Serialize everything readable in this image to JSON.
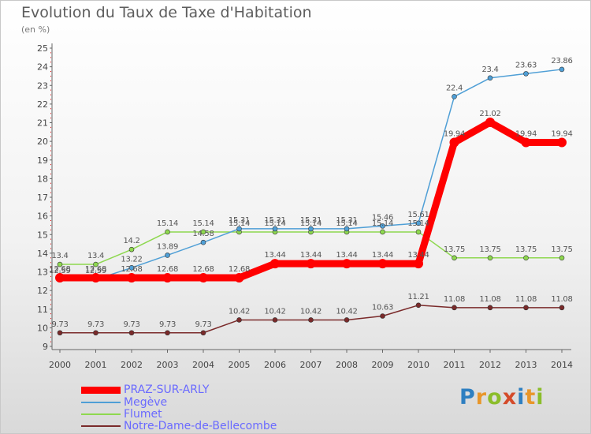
{
  "chart_data": {
    "type": "line",
    "title": "Evolution du Taux de Taxe d'Habitation",
    "subtitle": "(en %)",
    "x": [
      "2000",
      "2001",
      "2002",
      "2003",
      "2004",
      "2005",
      "2006",
      "2007",
      "2008",
      "2009",
      "2010",
      "2011",
      "2012",
      "2013",
      "2014"
    ],
    "ylim": [
      9,
      25
    ],
    "yticks": [
      9,
      10,
      11,
      12,
      13,
      14,
      15,
      16,
      17,
      18,
      19,
      20,
      21,
      22,
      23,
      24,
      25
    ],
    "grid": false,
    "legend_position": "bottom-left",
    "series": [
      {
        "name": "PRAZ-SUR-ARLY",
        "color": "#ff0000",
        "values": [
          12.68,
          12.68,
          12.68,
          12.68,
          12.68,
          12.68,
          13.44,
          13.44,
          13.44,
          13.44,
          13.44,
          19.94,
          21.02,
          19.94,
          19.94
        ],
        "labels": [
          "12.68",
          "12.68",
          "12.68",
          "12.68",
          "12.68",
          "12.68",
          "13.44",
          "13.44",
          "13.44",
          "13.44",
          "13.44",
          "19.94",
          "21.02",
          "19.94",
          "19.94"
        ]
      },
      {
        "name": "Megève",
        "color": "#4f9fd6",
        "values": [
          12.59,
          12.59,
          13.22,
          13.89,
          14.58,
          15.31,
          15.31,
          15.31,
          15.31,
          15.46,
          15.61,
          22.4,
          23.4,
          23.63,
          23.86
        ],
        "labels": [
          "12.59",
          "12.59",
          "13.22",
          "13.89",
          "14.58",
          "15.31",
          "15.31",
          "15.31",
          "15.31",
          "15.46",
          "15.61",
          "22.4",
          "23.4",
          "23.63",
          "23.86"
        ]
      },
      {
        "name": "Flumet",
        "color": "#8ed84f",
        "values": [
          13.4,
          13.4,
          14.2,
          15.14,
          15.14,
          15.14,
          15.14,
          15.14,
          15.14,
          15.14,
          15.14,
          13.75,
          13.75,
          13.75,
          13.75
        ],
        "labels": [
          "13.4",
          "13.4",
          "14.2",
          "15.14",
          "15.14",
          "15.14",
          "15.14",
          "15.14",
          "15.14",
          "15.14",
          "15.14",
          "13.75",
          "13.75",
          "13.75",
          "13.75"
        ]
      },
      {
        "name": "Notre-Dame-de-Bellecombe",
        "color": "#7a2a2a",
        "values": [
          9.73,
          9.73,
          9.73,
          9.73,
          9.73,
          10.42,
          10.42,
          10.42,
          10.42,
          10.63,
          11.21,
          11.08,
          11.08,
          11.08,
          11.08
        ],
        "labels": [
          "9.73",
          "9.73",
          "9.73",
          "9.73",
          "9.73",
          "10.42",
          "10.42",
          "10.42",
          "10.42",
          "10.63",
          "11.21",
          "11.08",
          "11.08",
          "11.08",
          "11.08"
        ]
      }
    ]
  },
  "legend": {
    "items": [
      {
        "label": "PRAZ-SUR-ARLY",
        "color": "#ff0000"
      },
      {
        "label": "Megève",
        "color": "#4f9fd6"
      },
      {
        "label": "Flumet",
        "color": "#8ed84f"
      },
      {
        "label": "Notre-Dame-de-Bellecombe",
        "color": "#7a2a2a"
      }
    ]
  },
  "logo": {
    "p": "P",
    "r": "r",
    "o": "o",
    "x": "x",
    "i1": "i",
    "t": "t",
    "i2": "i"
  }
}
